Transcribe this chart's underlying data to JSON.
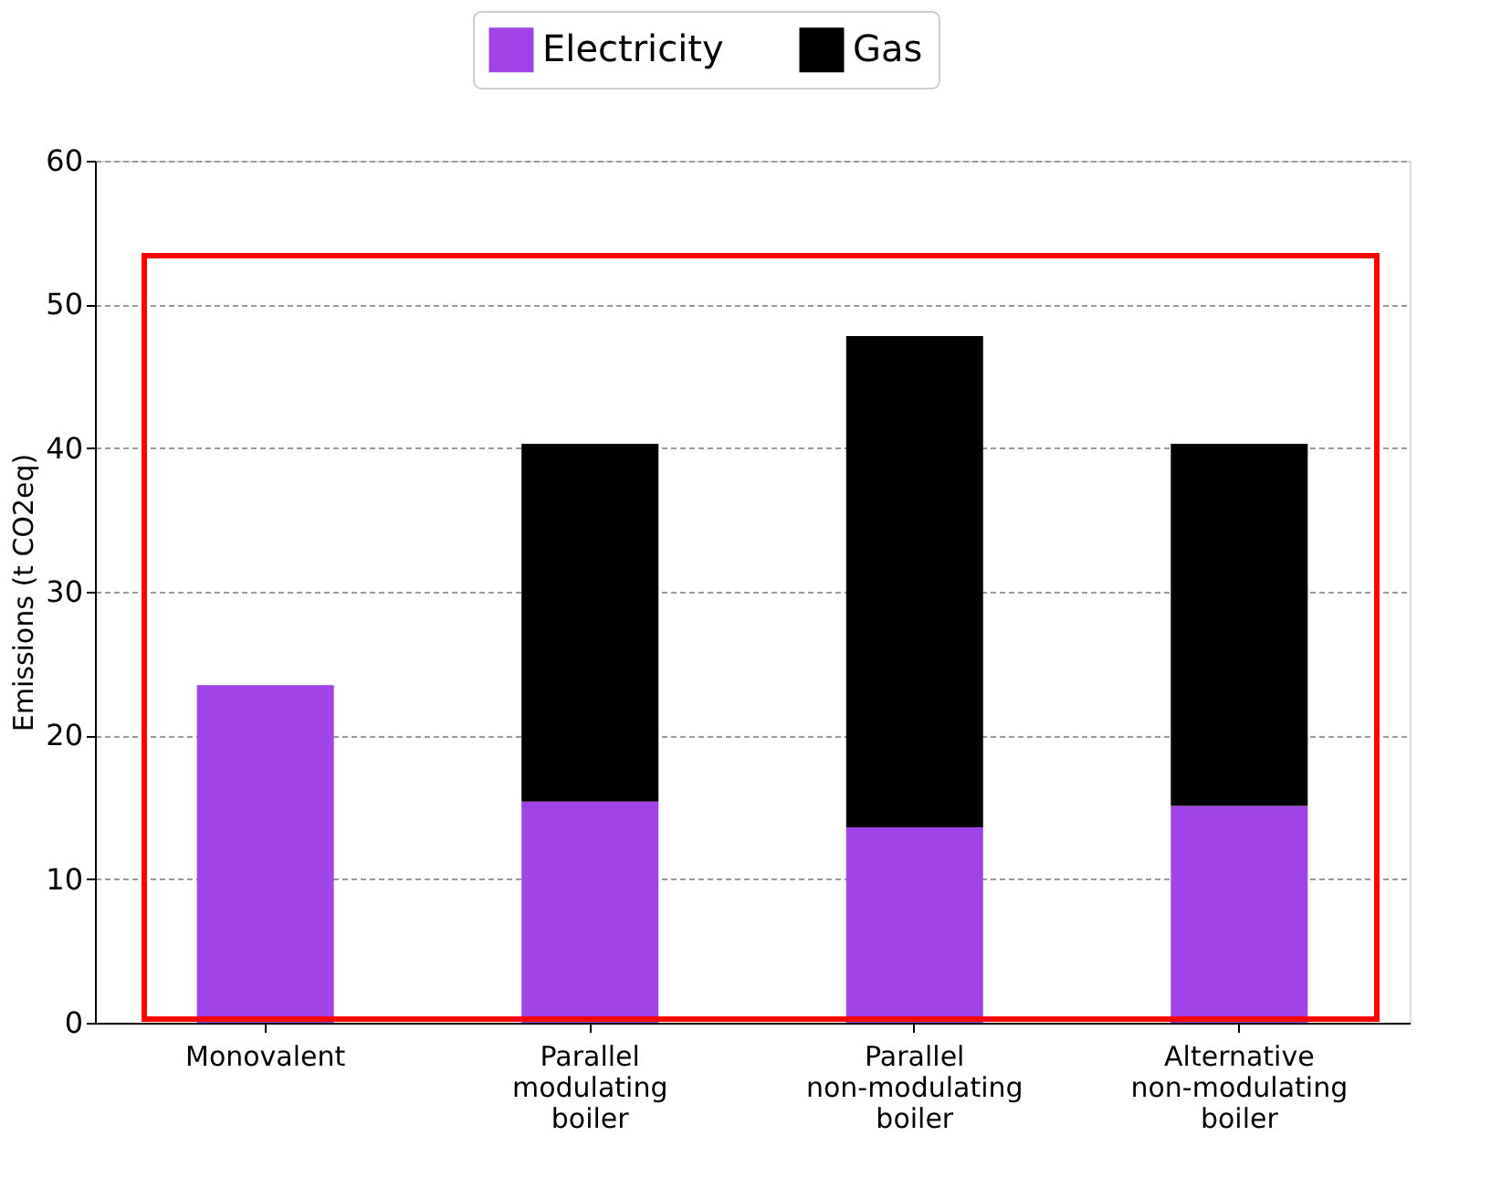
{
  "chart_data": {
    "type": "bar",
    "stacked": true,
    "ylabel": "Emissions (t CO2eq)",
    "categories": [
      "Monovalent",
      "Parallel\nmodulating\nboiler",
      "Parallel\nnon-modulating\nboiler",
      "Alternative\nnon-modulating\nboiler"
    ],
    "series": [
      {
        "name": "Electricity",
        "color": "#a044e8",
        "values": [
          23.5,
          15.4,
          13.6,
          15.1
        ]
      },
      {
        "name": "Gas",
        "color": "#000000",
        "values": [
          0,
          24.9,
          34.2,
          25.2
        ]
      }
    ],
    "ylim": [
      0,
      60
    ],
    "yticks": [
      0,
      10,
      20,
      30,
      40,
      50,
      60
    ],
    "grid": "y",
    "legend": "top right"
  }
}
